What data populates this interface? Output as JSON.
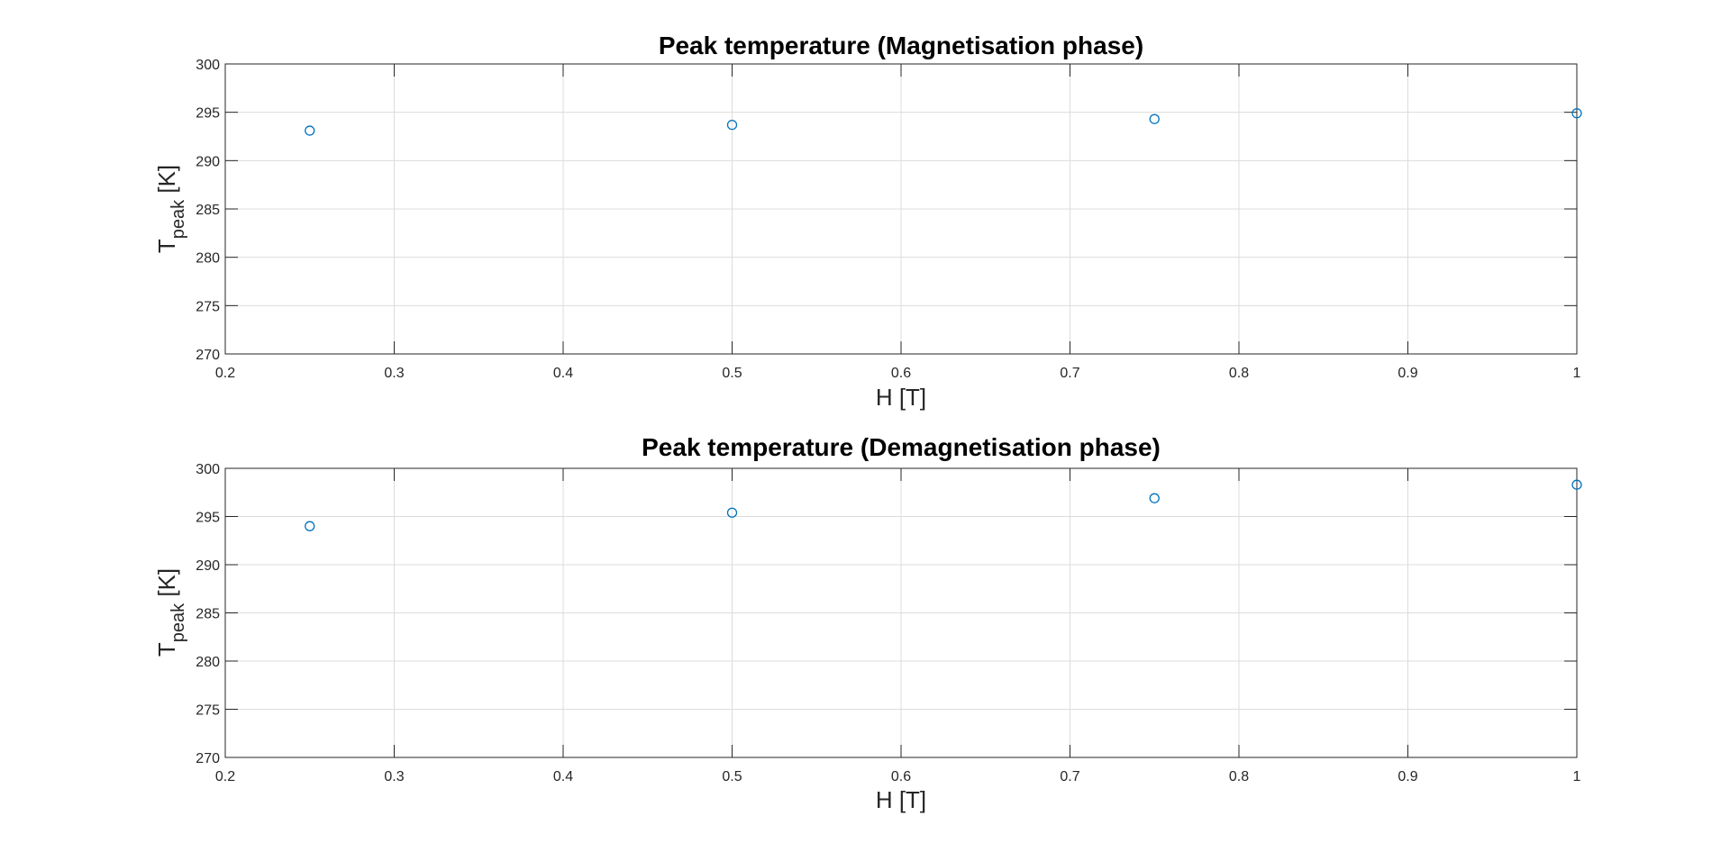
{
  "chart_data": [
    {
      "type": "scatter",
      "title": "Peak temperature (Magnetisation phase)",
      "xlabel": "H [T]",
      "ylabel_main": "T",
      "ylabel_sub": "peak",
      "ylabel_unit": " [K]",
      "xlim": [
        0.2,
        1
      ],
      "ylim": [
        270,
        300
      ],
      "xticks": [
        0.2,
        0.3,
        0.4,
        0.5,
        0.6,
        0.7,
        0.8,
        0.9,
        1
      ],
      "xtick_labels": [
        "0.2",
        "0.3",
        "0.4",
        "0.5",
        "0.6",
        "0.7",
        "0.8",
        "0.9",
        "1"
      ],
      "yticks": [
        270,
        275,
        280,
        285,
        290,
        295,
        300
      ],
      "ytick_labels": [
        "270",
        "275",
        "280",
        "285",
        "290",
        "295",
        "300"
      ],
      "grid": true,
      "marker": "circle-open",
      "marker_color": "#0072bd",
      "series": [
        {
          "x": [
            0.25,
            0.5,
            0.75,
            1.0
          ],
          "y": [
            293.1,
            293.7,
            294.3,
            294.9
          ]
        }
      ]
    },
    {
      "type": "scatter",
      "title": "Peak temperature (Demagnetisation phase)",
      "xlabel": "H [T]",
      "ylabel_main": "T",
      "ylabel_sub": "peak",
      "ylabel_unit": " [K]",
      "xlim": [
        0.2,
        1
      ],
      "ylim": [
        270,
        300
      ],
      "xticks": [
        0.2,
        0.3,
        0.4,
        0.5,
        0.6,
        0.7,
        0.8,
        0.9,
        1
      ],
      "xtick_labels": [
        "0.2",
        "0.3",
        "0.4",
        "0.5",
        "0.6",
        "0.7",
        "0.8",
        "0.9",
        "1"
      ],
      "yticks": [
        270,
        275,
        280,
        285,
        290,
        295,
        300
      ],
      "ytick_labels": [
        "270",
        "275",
        "280",
        "285",
        "290",
        "295",
        "300"
      ],
      "grid": true,
      "marker": "circle-open",
      "marker_color": "#0072bd",
      "series": [
        {
          "x": [
            0.25,
            0.5,
            0.75,
            1.0
          ],
          "y": [
            294.0,
            295.4,
            296.9,
            298.3
          ]
        }
      ]
    }
  ]
}
